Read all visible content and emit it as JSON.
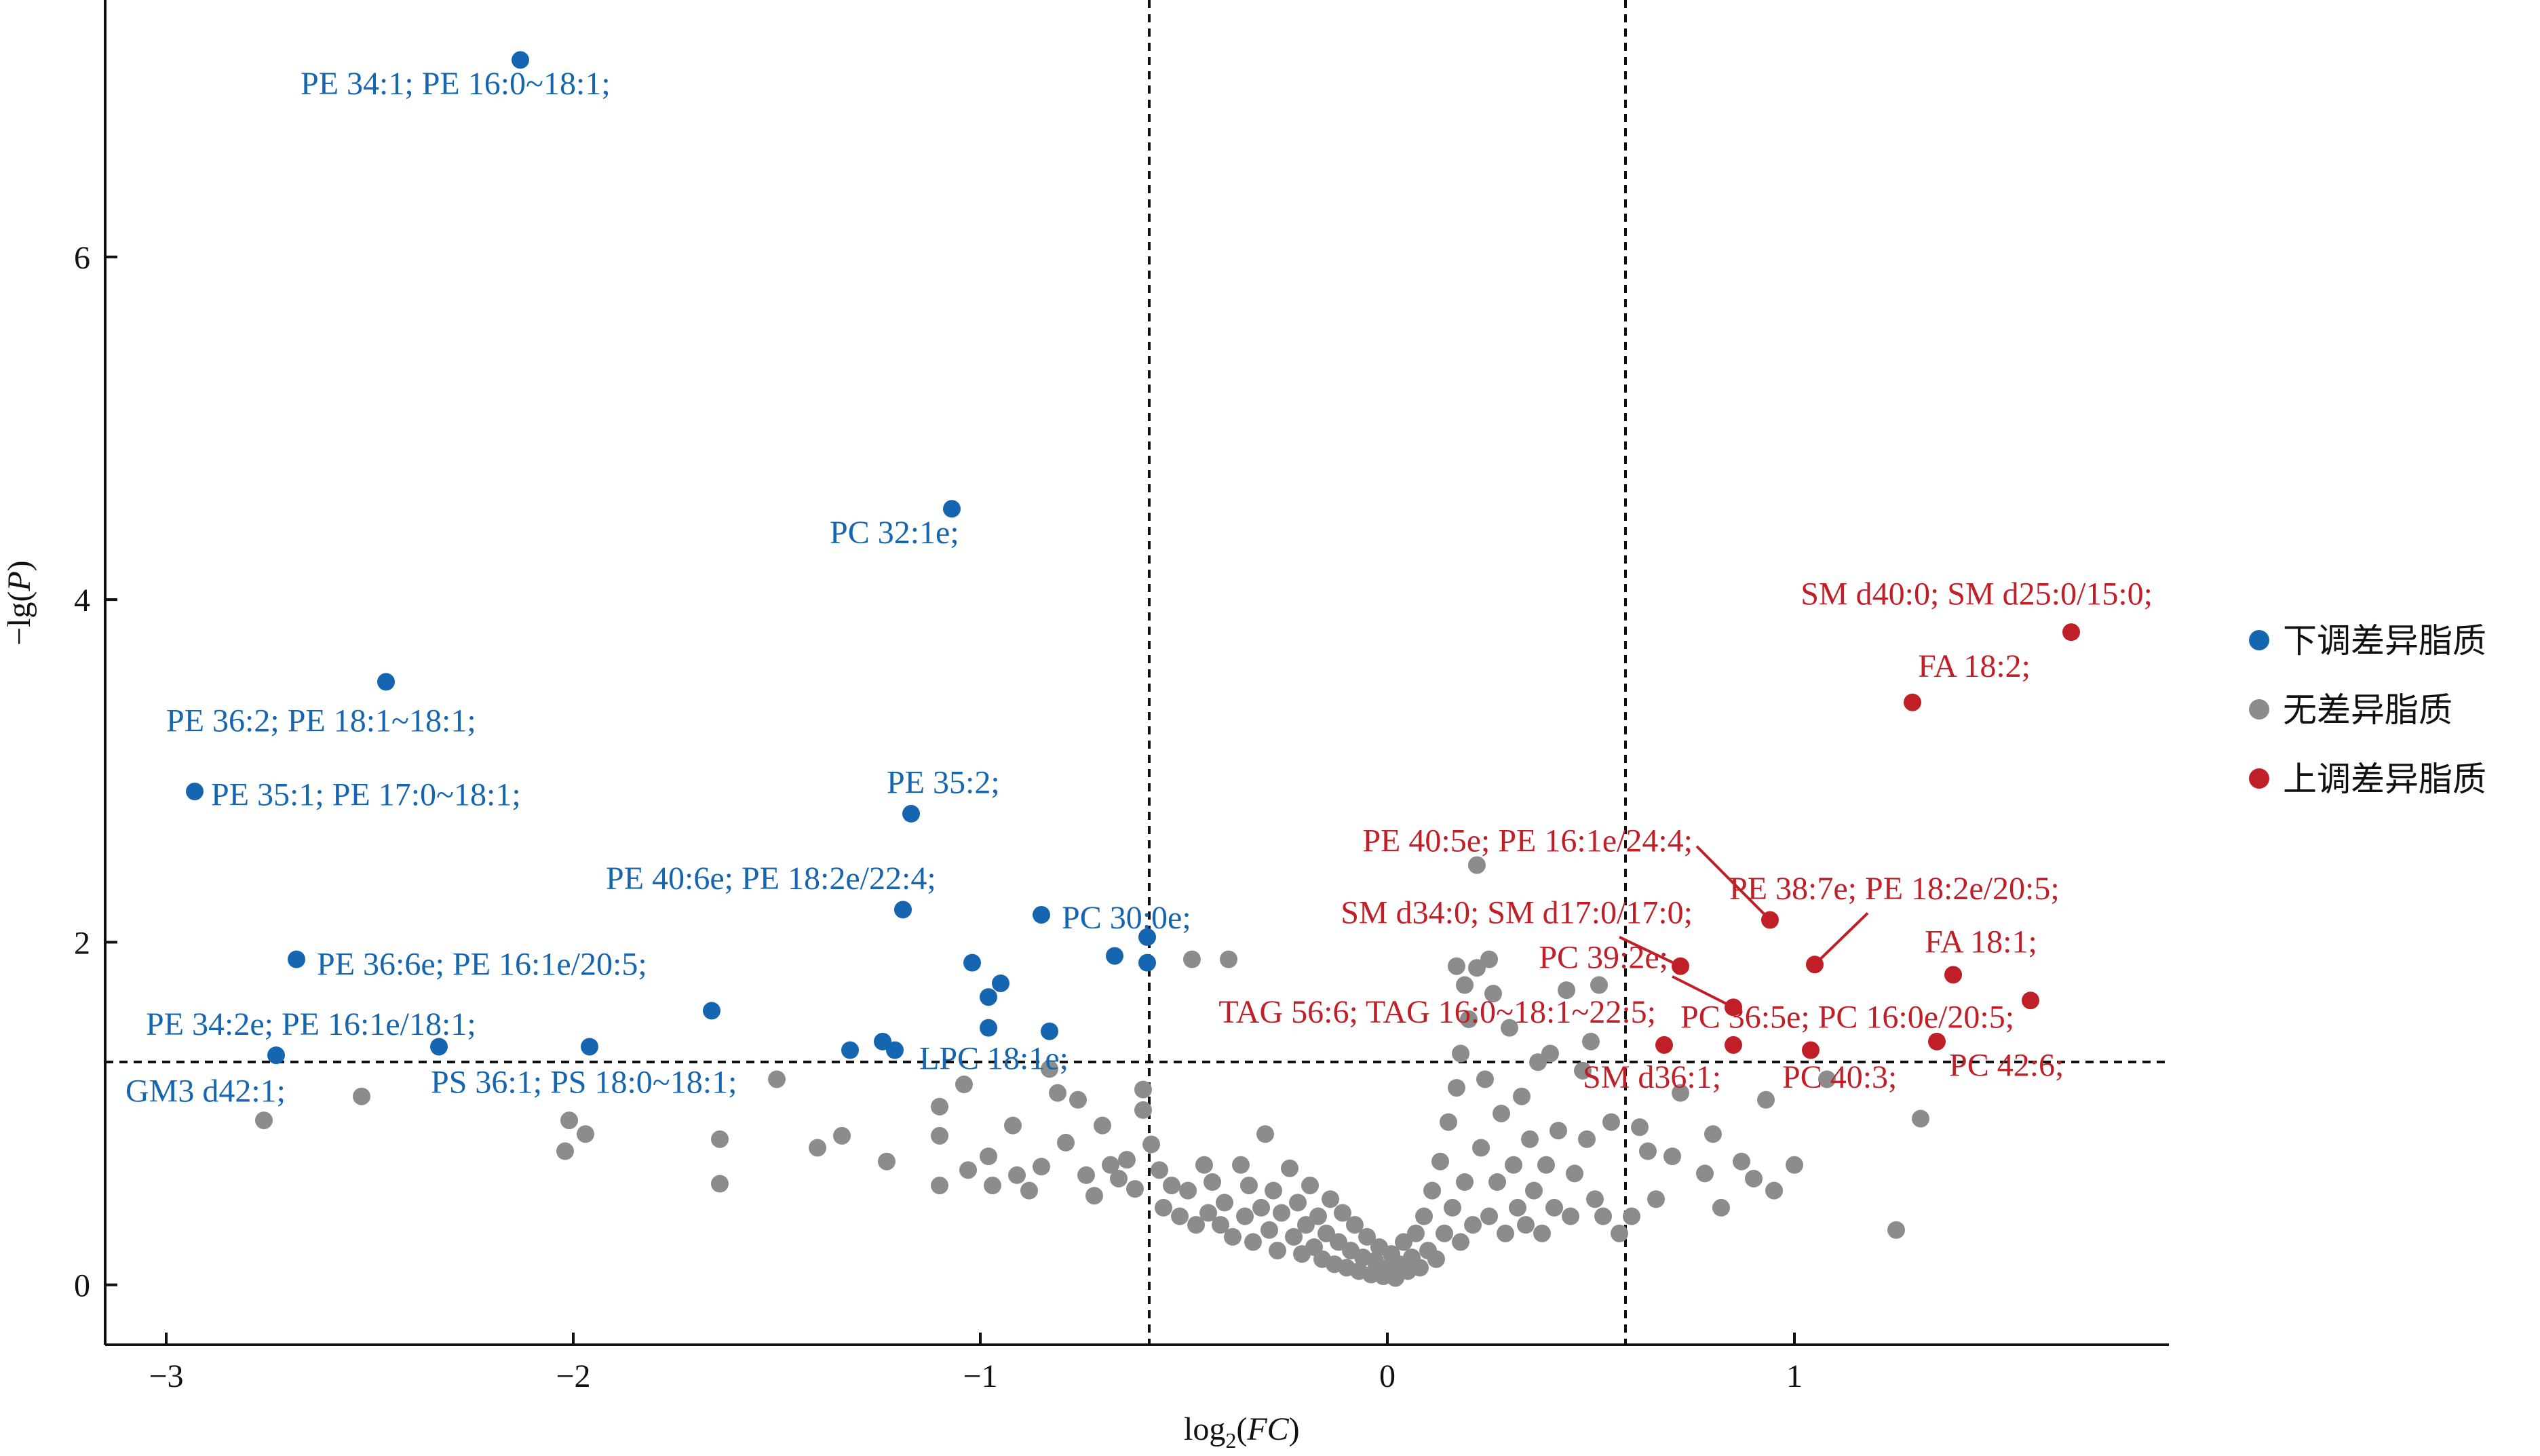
{
  "chart_data": {
    "type": "scatter",
    "title": "",
    "xlabel": {
      "main": "log",
      "sub": "2",
      "paren": "(FC)"
    },
    "ylabel": "−lg(P)",
    "xlim": [
      -3.15,
      1.92
    ],
    "ylim": [
      -0.35,
      7.5
    ],
    "xticks": [
      {
        "v": -3,
        "label": "−3"
      },
      {
        "v": -2,
        "label": "−2"
      },
      {
        "v": -1,
        "label": "−1"
      },
      {
        "v": 0,
        "label": "0"
      },
      {
        "v": 1,
        "label": "1"
      }
    ],
    "yticks": [
      {
        "v": 0,
        "label": "0"
      },
      {
        "v": 2,
        "label": "2"
      },
      {
        "v": 4,
        "label": "4"
      },
      {
        "v": 6,
        "label": "6"
      }
    ],
    "thresholds": {
      "fc_left": -0.585,
      "fc_right": 0.585,
      "p": 1.301
    },
    "colors": {
      "down": "#1565b0",
      "none": "#8c8c8c",
      "up": "#c01f27"
    },
    "legend": {
      "position": "right",
      "entries": [
        {
          "key": "down",
          "label": "下调差异脂质"
        },
        {
          "key": "none",
          "label": "无差异脂质"
        },
        {
          "key": "up",
          "label": "上调差异脂质"
        }
      ]
    },
    "series": [
      {
        "key": "down",
        "points": [
          [
            -2.13,
            7.15
          ],
          [
            -2.46,
            3.52
          ],
          [
            -2.93,
            2.88
          ],
          [
            -1.07,
            4.53
          ],
          [
            -1.17,
            2.75
          ],
          [
            -1.19,
            2.19
          ],
          [
            -0.85,
            2.16
          ],
          [
            -0.67,
            1.92
          ],
          [
            -0.59,
            2.03
          ],
          [
            -0.59,
            1.88
          ],
          [
            -2.68,
            1.9
          ],
          [
            -1.02,
            1.88
          ],
          [
            -0.95,
            1.76
          ],
          [
            -0.98,
            1.68
          ],
          [
            -1.66,
            1.6
          ],
          [
            -0.98,
            1.5
          ],
          [
            -0.83,
            1.48
          ],
          [
            -2.33,
            1.39
          ],
          [
            -1.96,
            1.39
          ],
          [
            -1.24,
            1.42
          ],
          [
            -1.21,
            1.37
          ],
          [
            -1.32,
            1.37
          ],
          [
            -2.73,
            1.34
          ]
        ]
      },
      {
        "key": "up",
        "points": [
          [
            1.68,
            3.81
          ],
          [
            1.29,
            3.4
          ],
          [
            0.94,
            2.13
          ],
          [
            1.05,
            1.87
          ],
          [
            0.72,
            1.86
          ],
          [
            1.39,
            1.81
          ],
          [
            1.58,
            1.66
          ],
          [
            0.85,
            1.62
          ],
          [
            0.68,
            1.4
          ],
          [
            0.85,
            1.4
          ],
          [
            1.04,
            1.37
          ],
          [
            1.35,
            1.42
          ]
        ]
      },
      {
        "key": "none",
        "points": [
          [
            -2.76,
            0.96
          ],
          [
            -2.52,
            1.1
          ],
          [
            -2.01,
            0.96
          ],
          [
            -2.02,
            0.78
          ],
          [
            -1.97,
            0.88
          ],
          [
            -1.64,
            0.85
          ],
          [
            -1.64,
            0.59
          ],
          [
            -1.5,
            1.2
          ],
          [
            -1.4,
            0.8
          ],
          [
            -1.34,
            0.87
          ],
          [
            -1.23,
            0.72
          ],
          [
            -1.1,
            1.04
          ],
          [
            -1.1,
            0.87
          ],
          [
            -1.04,
            1.17
          ],
          [
            -1.03,
            0.67
          ],
          [
            -1.1,
            0.58
          ],
          [
            -0.98,
            0.75
          ],
          [
            -0.97,
            0.58
          ],
          [
            -0.92,
            0.93
          ],
          [
            -0.91,
            0.64
          ],
          [
            -0.88,
            0.55
          ],
          [
            -0.85,
            0.69
          ],
          [
            -0.83,
            1.26
          ],
          [
            -0.81,
            1.12
          ],
          [
            -0.79,
            0.83
          ],
          [
            -0.76,
            1.08
          ],
          [
            -0.74,
            0.64
          ],
          [
            -0.72,
            0.52
          ],
          [
            -0.7,
            0.93
          ],
          [
            -0.68,
            0.7
          ],
          [
            -0.66,
            0.62
          ],
          [
            -0.64,
            0.73
          ],
          [
            -0.62,
            0.56
          ],
          [
            -0.6,
            1.02
          ],
          [
            -0.6,
            1.14
          ],
          [
            -0.58,
            0.82
          ],
          [
            -0.56,
            0.67
          ],
          [
            -0.55,
            0.45
          ],
          [
            -0.53,
            0.58
          ],
          [
            -0.51,
            0.4
          ],
          [
            -0.49,
            0.55
          ],
          [
            -0.48,
            1.9
          ],
          [
            -0.47,
            0.35
          ],
          [
            -0.45,
            0.7
          ],
          [
            -0.44,
            0.42
          ],
          [
            -0.43,
            0.6
          ],
          [
            -0.41,
            0.35
          ],
          [
            -0.4,
            0.48
          ],
          [
            -0.39,
            1.9
          ],
          [
            -0.38,
            0.28
          ],
          [
            -0.36,
            0.7
          ],
          [
            -0.35,
            0.4
          ],
          [
            -0.34,
            0.58
          ],
          [
            -0.33,
            0.25
          ],
          [
            -0.31,
            0.45
          ],
          [
            -0.3,
            0.88
          ],
          [
            -0.29,
            0.32
          ],
          [
            -0.28,
            0.55
          ],
          [
            -0.27,
            0.2
          ],
          [
            -0.26,
            0.42
          ],
          [
            -0.24,
            0.68
          ],
          [
            -0.23,
            0.28
          ],
          [
            -0.22,
            0.48
          ],
          [
            -0.21,
            0.18
          ],
          [
            -0.2,
            0.35
          ],
          [
            -0.19,
            0.58
          ],
          [
            -0.18,
            0.22
          ],
          [
            -0.17,
            0.4
          ],
          [
            -0.16,
            0.15
          ],
          [
            -0.15,
            0.3
          ],
          [
            -0.14,
            0.5
          ],
          [
            -0.13,
            0.12
          ],
          [
            -0.12,
            0.25
          ],
          [
            -0.11,
            0.42
          ],
          [
            -0.1,
            0.1
          ],
          [
            -0.09,
            0.2
          ],
          [
            -0.08,
            0.35
          ],
          [
            -0.07,
            0.08
          ],
          [
            -0.06,
            0.16
          ],
          [
            -0.05,
            0.28
          ],
          [
            -0.04,
            0.06
          ],
          [
            -0.03,
            0.14
          ],
          [
            -0.02,
            0.22
          ],
          [
            -0.01,
            0.05
          ],
          [
            0.0,
            0.1
          ],
          [
            0.01,
            0.18
          ],
          [
            0.02,
            0.04
          ],
          [
            0.03,
            0.12
          ],
          [
            0.04,
            0.25
          ],
          [
            0.05,
            0.08
          ],
          [
            0.06,
            0.16
          ],
          [
            0.07,
            0.3
          ],
          [
            0.08,
            0.1
          ],
          [
            0.09,
            0.4
          ],
          [
            0.1,
            0.2
          ],
          [
            0.11,
            0.55
          ],
          [
            0.12,
            0.15
          ],
          [
            0.13,
            0.72
          ],
          [
            0.14,
            0.3
          ],
          [
            0.15,
            0.95
          ],
          [
            0.16,
            0.45
          ],
          [
            0.17,
            1.15
          ],
          [
            0.18,
            0.25
          ],
          [
            0.18,
            1.35
          ],
          [
            0.19,
            0.6
          ],
          [
            0.2,
            1.55
          ],
          [
            0.21,
            0.35
          ],
          [
            0.22,
            1.85
          ],
          [
            0.22,
            2.45
          ],
          [
            0.23,
            0.8
          ],
          [
            0.24,
            1.2
          ],
          [
            0.25,
            0.4
          ],
          [
            0.26,
            1.7
          ],
          [
            0.27,
            0.6
          ],
          [
            0.28,
            1.0
          ],
          [
            0.29,
            0.3
          ],
          [
            0.3,
            1.5
          ],
          [
            0.31,
            0.7
          ],
          [
            0.32,
            0.45
          ],
          [
            0.33,
            1.1
          ],
          [
            0.34,
            0.35
          ],
          [
            0.35,
            0.85
          ],
          [
            0.36,
            0.55
          ],
          [
            0.37,
            1.3
          ],
          [
            0.38,
            0.3
          ],
          [
            0.39,
            0.7
          ],
          [
            0.4,
            1.35
          ],
          [
            0.41,
            0.45
          ],
          [
            0.42,
            0.9
          ],
          [
            0.44,
            1.72
          ],
          [
            0.45,
            0.4
          ],
          [
            0.46,
            0.65
          ],
          [
            0.48,
            1.25
          ],
          [
            0.49,
            0.85
          ],
          [
            0.5,
            1.42
          ],
          [
            0.51,
            0.5
          ],
          [
            0.52,
            1.75
          ],
          [
            0.53,
            0.4
          ],
          [
            0.55,
            0.95
          ],
          [
            0.57,
            0.3
          ],
          [
            0.17,
            1.86
          ],
          [
            0.19,
            1.75
          ],
          [
            0.25,
            1.9
          ],
          [
            0.64,
            0.78
          ],
          [
            0.66,
            0.5
          ],
          [
            0.7,
            0.75
          ],
          [
            0.72,
            1.12
          ],
          [
            0.78,
            0.65
          ],
          [
            0.8,
            0.88
          ],
          [
            0.82,
            0.45
          ],
          [
            0.87,
            0.72
          ],
          [
            0.9,
            0.62
          ],
          [
            0.93,
            1.08
          ],
          [
            0.95,
            0.55
          ],
          [
            1.0,
            0.7
          ],
          [
            1.08,
            1.2
          ],
          [
            1.25,
            0.32
          ],
          [
            1.31,
            0.97
          ],
          [
            0.6,
            0.4
          ],
          [
            0.62,
            0.92
          ]
        ]
      }
    ],
    "annotations": [
      {
        "label": "PE 34:1; PE 16:0~18:1;",
        "key": "down",
        "x": -2.67,
        "y": 6.95,
        "anchor": "start"
      },
      {
        "label": "PC 32:1e;",
        "key": "down",
        "x": -1.37,
        "y": 4.33,
        "anchor": "start"
      },
      {
        "label": "PE 36:2; PE 18:1~18:1;",
        "key": "down",
        "x": -3.0,
        "y": 3.23,
        "anchor": "start"
      },
      {
        "label": "PE 35:1; PE 17:0~18:1;",
        "key": "down",
        "x": -2.89,
        "y": 2.8,
        "anchor": "start"
      },
      {
        "label": "PE 35:2;",
        "key": "down",
        "x": -1.23,
        "y": 2.87,
        "anchor": "start"
      },
      {
        "label": "PE 40:6e; PE 18:2e/22:4;",
        "key": "down",
        "x": -1.92,
        "y": 2.31,
        "anchor": "start"
      },
      {
        "label": "PC 30:0e;",
        "key": "down",
        "x": -0.8,
        "y": 2.08,
        "anchor": "start"
      },
      {
        "label": "PE 36:6e; PE 16:1e/20:5;",
        "key": "down",
        "x": -2.63,
        "y": 1.81,
        "anchor": "start"
      },
      {
        "label": "PE 34:2e; PE 16:1e/18:1;",
        "key": "down",
        "x": -3.05,
        "y": 1.46,
        "anchor": "start"
      },
      {
        "label": "LPC 18:1e;",
        "key": "down",
        "x": -1.15,
        "y": 1.26,
        "anchor": "start"
      },
      {
        "label": "PS 36:1; PS 18:0~18:1;",
        "key": "down",
        "x": -2.35,
        "y": 1.12,
        "anchor": "start"
      },
      {
        "label": "GM3 d42:1;",
        "key": "down",
        "x": -3.1,
        "y": 1.07,
        "anchor": "start"
      },
      {
        "label": "SM d40:0; SM d25:0/15:0;",
        "key": "up",
        "x": 1.88,
        "y": 3.97,
        "anchor": "end"
      },
      {
        "label": "FA 18:2;",
        "key": "up",
        "x": 1.58,
        "y": 3.55,
        "anchor": "end"
      },
      {
        "label": "PE 40:5e; PE 16:1e/24:4;",
        "key": "up",
        "x": 0.75,
        "y": 2.53,
        "anchor": "end"
      },
      {
        "label": "PE 38:7e; PE 18:2e/20:5;",
        "key": "up",
        "x": 0.84,
        "y": 2.25,
        "anchor": "start"
      },
      {
        "label": "SM d34:0; SM d17:0/17:0;",
        "key": "up",
        "x": 0.75,
        "y": 2.11,
        "anchor": "end"
      },
      {
        "label": "FA 18:1;",
        "key": "up",
        "x": 1.32,
        "y": 1.94,
        "anchor": "start"
      },
      {
        "label": "PC 39:2e;",
        "key": "up",
        "x": 0.69,
        "y": 1.85,
        "anchor": "end"
      },
      {
        "label": "TAG 56:6; TAG 16:0~18:1~22:5;",
        "key": "up",
        "x": 0.66,
        "y": 1.53,
        "anchor": "end"
      },
      {
        "label": "PC 36:5e; PC 16:0e/20:5;",
        "key": "up",
        "x": 0.72,
        "y": 1.5,
        "anchor": "start"
      },
      {
        "label": "SM d36:1;",
        "key": "up",
        "x": 0.48,
        "y": 1.15,
        "anchor": "start"
      },
      {
        "label": "PC 40:3;",
        "key": "up",
        "x": 0.97,
        "y": 1.15,
        "anchor": "start"
      },
      {
        "label": "PC 42:6;",
        "key": "up",
        "x": 1.38,
        "y": 1.22,
        "anchor": "start"
      }
    ],
    "leaders": [
      {
        "key": "up",
        "from": [
          0.76,
          2.56
        ],
        "to": [
          0.94,
          2.13
        ]
      },
      {
        "key": "up",
        "from": [
          1.18,
          2.17
        ],
        "to": [
          1.05,
          1.87
        ]
      },
      {
        "key": "up",
        "from": [
          0.57,
          2.03
        ],
        "to": [
          0.72,
          1.86
        ]
      },
      {
        "key": "up",
        "from": [
          0.7,
          1.8
        ],
        "to": [
          0.85,
          1.62
        ]
      }
    ]
  }
}
